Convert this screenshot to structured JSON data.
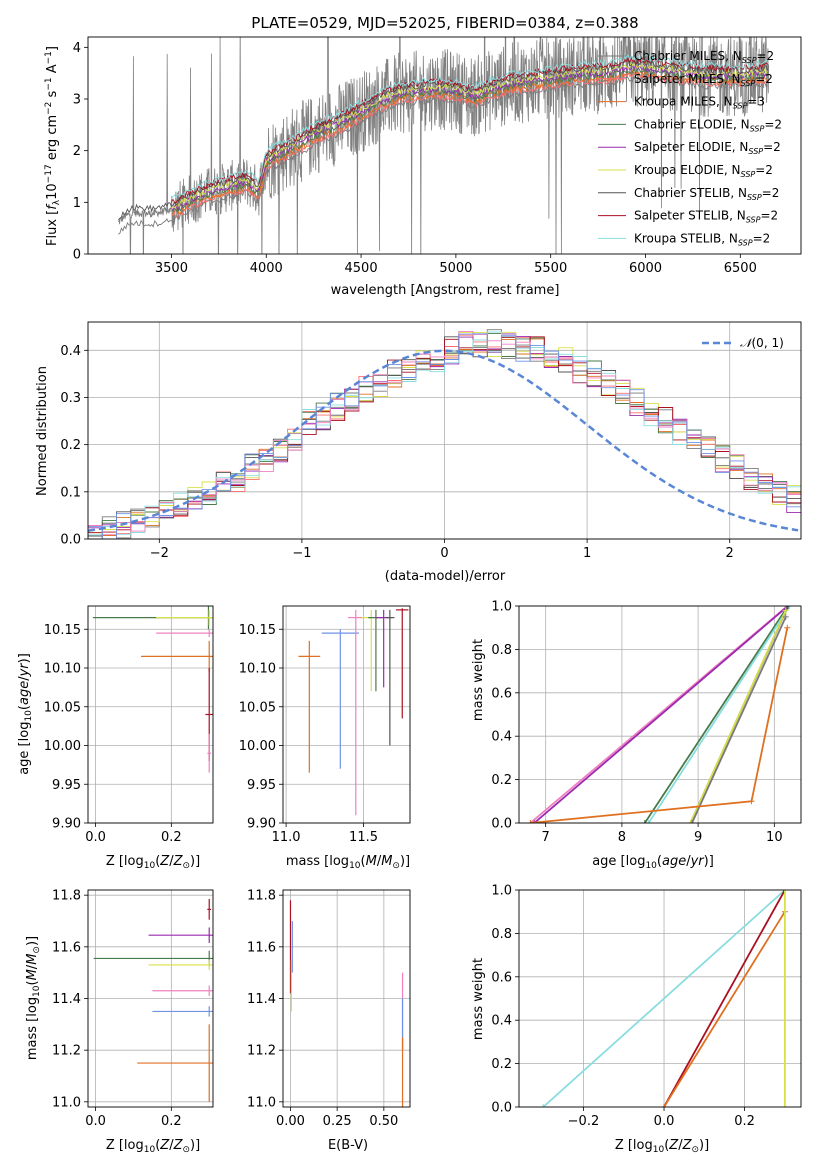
{
  "title": "PLATE=0529, MJD=52025, FIBERID=0384, z=0.388",
  "colors": {
    "chabrier_miles": "#7a7a7a",
    "salpeter_miles": "#ff6f6f",
    "kroupa_miles": "#e07020",
    "chabrier_elodie": "#4a7a4a",
    "salpeter_elodie": "#9a2ab0",
    "kroupa_elodie": "#d8e04a",
    "chabrier_stelib": "#555555",
    "salpeter_stelib": "#aa1020",
    "kroupa_stelib": "#88dde0",
    "dashed_normal": "#5a86d6",
    "extra_blue": "#6f93e6",
    "extra_pink": "#f080c0"
  },
  "chart_data": [
    {
      "id": "spectrum",
      "type": "line",
      "xlabel": "wavelength [Angstrom, rest frame]",
      "ylabel": "Flux [f_λ10^-17 erg cm^-2 s^-1 A^-1]",
      "xlim": [
        3060,
        6820
      ],
      "ylim": [
        0,
        4.2
      ],
      "xticks": [
        3500,
        4000,
        4500,
        5000,
        5500,
        6000,
        6500
      ],
      "yticks": [
        0,
        1,
        2,
        3,
        4
      ],
      "grid": false,
      "legend_position": "top-right",
      "legend": [
        {
          "label": "Chabrier MILES, N",
          "sub": "SSP",
          "val": "=2",
          "color_key": "chabrier_miles"
        },
        {
          "label": "Salpeter MILES, N",
          "sub": "SSP",
          "val": "=2",
          "color_key": "salpeter_miles"
        },
        {
          "label": "Kroupa MILES, N",
          "sub": "SSP",
          "val": "=3",
          "color_key": "kroupa_miles"
        },
        {
          "label": "Chabrier ELODIE, N",
          "sub": "SSP",
          "val": "=2",
          "color_key": "chabrier_elodie"
        },
        {
          "label": "Salpeter ELODIE, N",
          "sub": "SSP",
          "val": "=2",
          "color_key": "salpeter_elodie"
        },
        {
          "label": "Kroupa ELODIE, N",
          "sub": "SSP",
          "val": "=2",
          "color_key": "kroupa_elodie"
        },
        {
          "label": "Chabrier STELIB, N",
          "sub": "SSP",
          "val": "=2",
          "color_key": "chabrier_stelib"
        },
        {
          "label": "Salpeter STELIB, N",
          "sub": "SSP",
          "val": "=2",
          "color_key": "salpeter_stelib"
        },
        {
          "label": "Kroupa STELIB, N",
          "sub": "SSP",
          "val": "=2",
          "color_key": "kroupa_stelib"
        }
      ],
      "model_curve": {
        "x": [
          3220,
          3250,
          3300,
          3400,
          3500,
          3600,
          3700,
          3800,
          3900,
          3960,
          4000,
          4100,
          4200,
          4300,
          4400,
          4500,
          4600,
          4700,
          4800,
          4900,
          5000,
          5100,
          5200,
          5300,
          5400,
          5500,
          5600,
          5700,
          5800,
          5900,
          6000,
          6100,
          6200,
          6300,
          6400,
          6500,
          6650
        ],
        "y": [
          0.6,
          0.72,
          0.8,
          0.78,
          0.85,
          1.05,
          1.2,
          1.3,
          1.4,
          1.2,
          1.8,
          2.0,
          2.2,
          2.4,
          2.55,
          2.75,
          2.95,
          3.1,
          3.15,
          3.2,
          3.15,
          3.05,
          3.2,
          3.3,
          3.35,
          3.4,
          3.45,
          3.5,
          3.5,
          3.6,
          3.6,
          3.55,
          3.5,
          3.45,
          3.45,
          3.45,
          3.5
        ]
      }
    },
    {
      "id": "residuals",
      "type": "bar",
      "xlabel": "(data-model)/error",
      "ylabel": "Normed distribution",
      "xlim": [
        -2.5,
        2.5
      ],
      "ylim": [
        0,
        0.46
      ],
      "xticks": [
        -2,
        -1,
        0,
        1,
        2
      ],
      "yticks": [
        0.0,
        0.1,
        0.2,
        0.3,
        0.4
      ],
      "grid": true,
      "legend_position": "top-right",
      "legend": [
        {
          "label": "N(0, 1)",
          "color_key": "dashed_normal",
          "dashed": true
        }
      ],
      "bin_width": 0.1,
      "histogram_template": [
        0.01,
        0.02,
        0.03,
        0.035,
        0.05,
        0.06,
        0.07,
        0.085,
        0.1,
        0.12,
        0.13,
        0.155,
        0.17,
        0.19,
        0.215,
        0.25,
        0.26,
        0.28,
        0.3,
        0.315,
        0.33,
        0.35,
        0.36,
        0.38,
        0.38,
        0.4,
        0.41,
        0.41,
        0.415,
        0.41,
        0.4,
        0.4,
        0.39,
        0.38,
        0.36,
        0.35,
        0.33,
        0.31,
        0.29,
        0.27,
        0.25,
        0.23,
        0.21,
        0.19,
        0.17,
        0.15,
        0.13,
        0.115,
        0.1,
        0.085
      ]
    },
    {
      "id": "age_vs_z",
      "type": "scatter",
      "xlabel": "Z [log10(Z/Z⊙)]",
      "ylabel": "age [log10(age/yr)]",
      "xlim": [
        -0.02,
        0.31
      ],
      "ylim": [
        9.9,
        10.18
      ],
      "xticks": [
        0.0,
        0.2
      ],
      "yticks": [
        9.9,
        9.95,
        10.0,
        10.05,
        10.1,
        10.15
      ],
      "grid": true,
      "points": [
        {
          "z": 0.298,
          "age": 10.165,
          "zerr": 0.305,
          "aerr": 0.015,
          "color_key": "chabrier_elodie"
        },
        {
          "z": 0.3,
          "age": 10.165,
          "zerr": 0.14,
          "aerr": 0.01,
          "color_key": "kroupa_elodie"
        },
        {
          "z": 0.3,
          "age": 10.145,
          "zerr": 0.14,
          "aerr": 0.005,
          "color_key": "extra_pink"
        },
        {
          "z": 0.3,
          "age": 10.115,
          "zerr": 0.18,
          "aerr": 0.02,
          "color_key": "kroupa_miles"
        },
        {
          "z": 0.3,
          "age": 10.04,
          "zerr": 0.01,
          "aerr": 0.06,
          "color_key": "salpeter_stelib"
        },
        {
          "z": 0.3,
          "age": 9.99,
          "zerr": 0.005,
          "aerr": 0.025,
          "color_key": "extra_pink"
        }
      ]
    },
    {
      "id": "age_vs_mass",
      "type": "scatter",
      "xlabel": "mass [log10(M/M⊙)]",
      "ylabel": "",
      "xlim": [
        10.98,
        11.8
      ],
      "ylim": [
        9.9,
        10.18
      ],
      "xticks": [
        11.0,
        11.5
      ],
      "yticks": [
        9.9,
        9.95,
        10.0,
        10.05,
        10.1,
        10.15
      ],
      "grid": true,
      "points": [
        {
          "mass": 11.15,
          "age": 10.115,
          "merr": 0.07,
          "aerr": [
            0.15,
            0.02
          ],
          "color_key": "kroupa_miles"
        },
        {
          "mass": 11.35,
          "age": 10.145,
          "merr": 0.12,
          "aerr": [
            0.175,
            0.005
          ],
          "color_key": "extra_blue"
        },
        {
          "mass": 11.45,
          "age": 10.165,
          "merr": 0.05,
          "aerr": [
            0.255,
            0.01
          ],
          "color_key": "extra_pink"
        },
        {
          "mass": 11.55,
          "age": 10.165,
          "merr": 0.06,
          "aerr": [
            0.095,
            0.01
          ],
          "color_key": "kroupa_elodie"
        },
        {
          "mass": 11.58,
          "age": 10.165,
          "merr": 0.05,
          "aerr": [
            0.095,
            0.01
          ],
          "color_key": "chabrier_elodie"
        },
        {
          "mass": 11.63,
          "age": 10.165,
          "merr": 0.05,
          "aerr": [
            0.09,
            0.01
          ],
          "color_key": "salpeter_elodie"
        },
        {
          "mass": 11.67,
          "age": 10.165,
          "merr": 0.03,
          "aerr": [
            0.165,
            0.01
          ],
          "color_key": "chabrier_stelib"
        },
        {
          "mass": 11.75,
          "age": 10.175,
          "merr": 0.04,
          "aerr": [
            0.14,
            0.002
          ],
          "color_key": "salpeter_stelib"
        }
      ]
    },
    {
      "id": "cumulative_age",
      "type": "line",
      "xlabel": "age [log10(age/yr)]",
      "ylabel": "mass weight",
      "xlim": [
        6.65,
        10.35
      ],
      "ylim": [
        0,
        1.0
      ],
      "xticks": [
        7,
        8,
        9,
        10
      ],
      "yticks": [
        0.0,
        0.2,
        0.4,
        0.6,
        0.8,
        1.0
      ],
      "grid": true,
      "series": [
        {
          "x": [
            6.8,
            10.17
          ],
          "y": [
            0.0,
            1.0
          ],
          "color_key": "extra_pink"
        },
        {
          "x": [
            6.85,
            10.18
          ],
          "y": [
            0.0,
            1.0
          ],
          "color_key": "salpeter_elodie"
        },
        {
          "x": [
            8.3,
            10.18
          ],
          "y": [
            0.0,
            1.0
          ],
          "color_key": "chabrier_elodie"
        },
        {
          "x": [
            8.35,
            10.2
          ],
          "y": [
            0.0,
            1.0
          ],
          "color_key": "kroupa_stelib"
        },
        {
          "x": [
            8.9,
            10.18
          ],
          "y": [
            0.0,
            1.0
          ],
          "color_key": "chabrier_stelib"
        },
        {
          "x": [
            8.9,
            10.15
          ],
          "y": [
            0.0,
            0.98
          ],
          "color_key": "kroupa_elodie"
        },
        {
          "x": [
            8.92,
            10.15
          ],
          "y": [
            0.0,
            0.95
          ],
          "color_key": "chabrier_miles"
        },
        {
          "x": [
            6.8,
            9.7,
            10.17
          ],
          "y": [
            0.0,
            0.1,
            0.9
          ],
          "color_key": "kroupa_miles"
        }
      ]
    },
    {
      "id": "mass_vs_z",
      "type": "scatter",
      "xlabel": "Z [log10(Z/Z⊙)]",
      "ylabel": "mass [log10(M/M⊙)]",
      "xlim": [
        -0.02,
        0.31
      ],
      "ylim": [
        10.98,
        11.82
      ],
      "xticks": [
        0.0,
        0.2
      ],
      "yticks": [
        11.0,
        11.2,
        11.4,
        11.6,
        11.8
      ],
      "grid": true,
      "points": [
        {
          "z": 0.3,
          "mass": 11.555,
          "zerr": 0.305,
          "merr": 0.03,
          "color_key": "chabrier_elodie"
        },
        {
          "z": 0.3,
          "mass": 11.645,
          "zerr": 0.16,
          "merr": 0.03,
          "color_key": "salpeter_elodie"
        },
        {
          "z": 0.3,
          "mass": 11.53,
          "zerr": 0.16,
          "merr": 0.02,
          "color_key": "kroupa_elodie"
        },
        {
          "z": 0.3,
          "mass": 11.43,
          "zerr": 0.15,
          "merr": 0.02,
          "color_key": "extra_pink"
        },
        {
          "z": 0.3,
          "mass": 11.35,
          "zerr": 0.15,
          "merr": 0.02,
          "color_key": "extra_blue"
        },
        {
          "z": 0.3,
          "mass": 11.15,
          "zerr": 0.19,
          "merr": 0.15,
          "color_key": "kroupa_miles"
        },
        {
          "z": 0.3,
          "mass": 11.745,
          "zerr": 0.005,
          "merr": 0.04,
          "color_key": "salpeter_stelib"
        }
      ]
    },
    {
      "id": "mass_vs_ebv",
      "type": "scatter",
      "xlabel": "E(B-V)",
      "ylabel": "",
      "xlim": [
        -0.04,
        0.64
      ],
      "ylim": [
        10.98,
        11.82
      ],
      "xticks": [
        0.0,
        0.25,
        0.5
      ],
      "yticks": [
        11.0,
        11.2,
        11.4,
        11.6,
        11.8
      ],
      "grid": true,
      "points": [
        {
          "ebv": 0.0,
          "mass": 11.6,
          "merr": 0.18,
          "color_key": "salpeter_stelib"
        },
        {
          "ebv": 0.005,
          "mass": 11.45,
          "merr": 0.1,
          "color_key": "kroupa_elodie"
        },
        {
          "ebv": 0.01,
          "mass": 11.6,
          "merr": 0.1,
          "color_key": "extra_blue"
        },
        {
          "ebv": 0.6,
          "mass": 11.35,
          "merr": 0.15,
          "color_key": "extra_pink"
        },
        {
          "ebv": 0.6,
          "mass": 11.3,
          "merr": 0.1,
          "color_key": "extra_blue"
        },
        {
          "ebv": 0.6,
          "mass": 11.1,
          "merr": 0.15,
          "color_key": "kroupa_miles"
        }
      ]
    },
    {
      "id": "cumulative_z",
      "type": "line",
      "xlabel": "Z [log10(Z/Z⊙)]",
      "ylabel": "mass weight",
      "xlim": [
        -0.36,
        0.34
      ],
      "ylim": [
        0,
        1.0
      ],
      "xticks": [
        -0.2,
        0.0,
        0.2
      ],
      "yticks": [
        0.0,
        0.2,
        0.4,
        0.6,
        0.8,
        1.0
      ],
      "grid": true,
      "series": [
        {
          "x": [
            -0.3,
            0.3
          ],
          "y": [
            0.0,
            1.0
          ],
          "color_key": "kroupa_stelib"
        },
        {
          "x": [
            0.0,
            0.3
          ],
          "y": [
            0.0,
            1.0
          ],
          "color_key": "salpeter_stelib"
        },
        {
          "x": [
            0.0,
            0.3
          ],
          "y": [
            0.0,
            0.9
          ],
          "color_key": "kroupa_miles"
        },
        {
          "x": [
            0.3,
            0.3
          ],
          "y": [
            0.0,
            1.0
          ],
          "color_key": "kroupa_elodie"
        }
      ]
    }
  ]
}
